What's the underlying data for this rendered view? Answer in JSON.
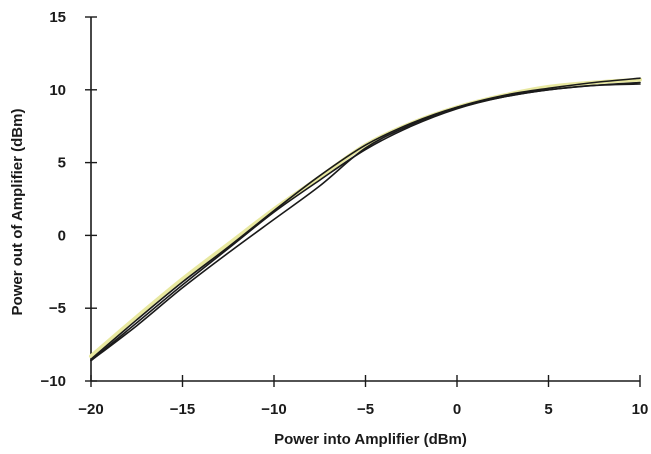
{
  "chart_data": {
    "type": "line",
    "title": "",
    "xlabel": "Power into Amplifier (dBm)",
    "ylabel": "Power out of Amplifier (dBm)",
    "xlim": [
      -20,
      10
    ],
    "ylim": [
      -10,
      15
    ],
    "xticks": [
      -20,
      -15,
      -10,
      -5,
      0,
      5,
      10
    ],
    "yticks": [
      -10,
      -5,
      0,
      5,
      10,
      15
    ],
    "xtick_labels": [
      "−20",
      "−15",
      "−10",
      "−5",
      "0",
      "5",
      "10"
    ],
    "ytick_labels": [
      "−10",
      "−5",
      "0",
      "5",
      "10",
      "15"
    ],
    "grid": false,
    "series": [
      {
        "color": "#e8e8a0",
        "x": [
          -20,
          -17.5,
          -15,
          -12.5,
          -10,
          -7.5,
          -5,
          -2.5,
          0,
          2.5,
          5,
          7.5,
          10
        ],
        "y": [
          -8.3,
          -5.6,
          -3.0,
          -0.6,
          1.8,
          4.0,
          6.2,
          7.7,
          8.8,
          9.6,
          10.2,
          10.5,
          10.7
        ]
      },
      {
        "color": "#1a1a1a",
        "x": [
          -20,
          -17.5,
          -15,
          -12.5,
          -10,
          -7.5,
          -5,
          -2.5,
          0,
          2.5,
          5,
          7.5,
          10
        ],
        "y": [
          -8.6,
          -6.0,
          -3.4,
          -0.9,
          1.6,
          3.8,
          5.9,
          7.5,
          8.7,
          9.5,
          10.0,
          10.3,
          10.4
        ]
      },
      {
        "color": "#1a1a1a",
        "x": [
          -20,
          -17.5,
          -15,
          -12.5,
          -10,
          -7.5,
          -5,
          -2.5,
          0,
          2.5,
          5,
          7.5,
          10
        ],
        "y": [
          -8.6,
          -6.2,
          -3.6,
          -1.2,
          1.1,
          3.4,
          6.0,
          7.6,
          8.8,
          9.6,
          10.1,
          10.5,
          10.8
        ]
      },
      {
        "color": "#1a1a1a",
        "x": [
          -20,
          -17.5,
          -15,
          -12.5,
          -10,
          -7.5,
          -5,
          -2.5,
          0,
          2.5,
          5,
          7.5,
          10
        ],
        "y": [
          -8.5,
          -5.8,
          -3.2,
          -0.8,
          1.7,
          4.1,
          6.2,
          7.7,
          8.8,
          9.5,
          10.0,
          10.3,
          10.5
        ]
      }
    ]
  }
}
